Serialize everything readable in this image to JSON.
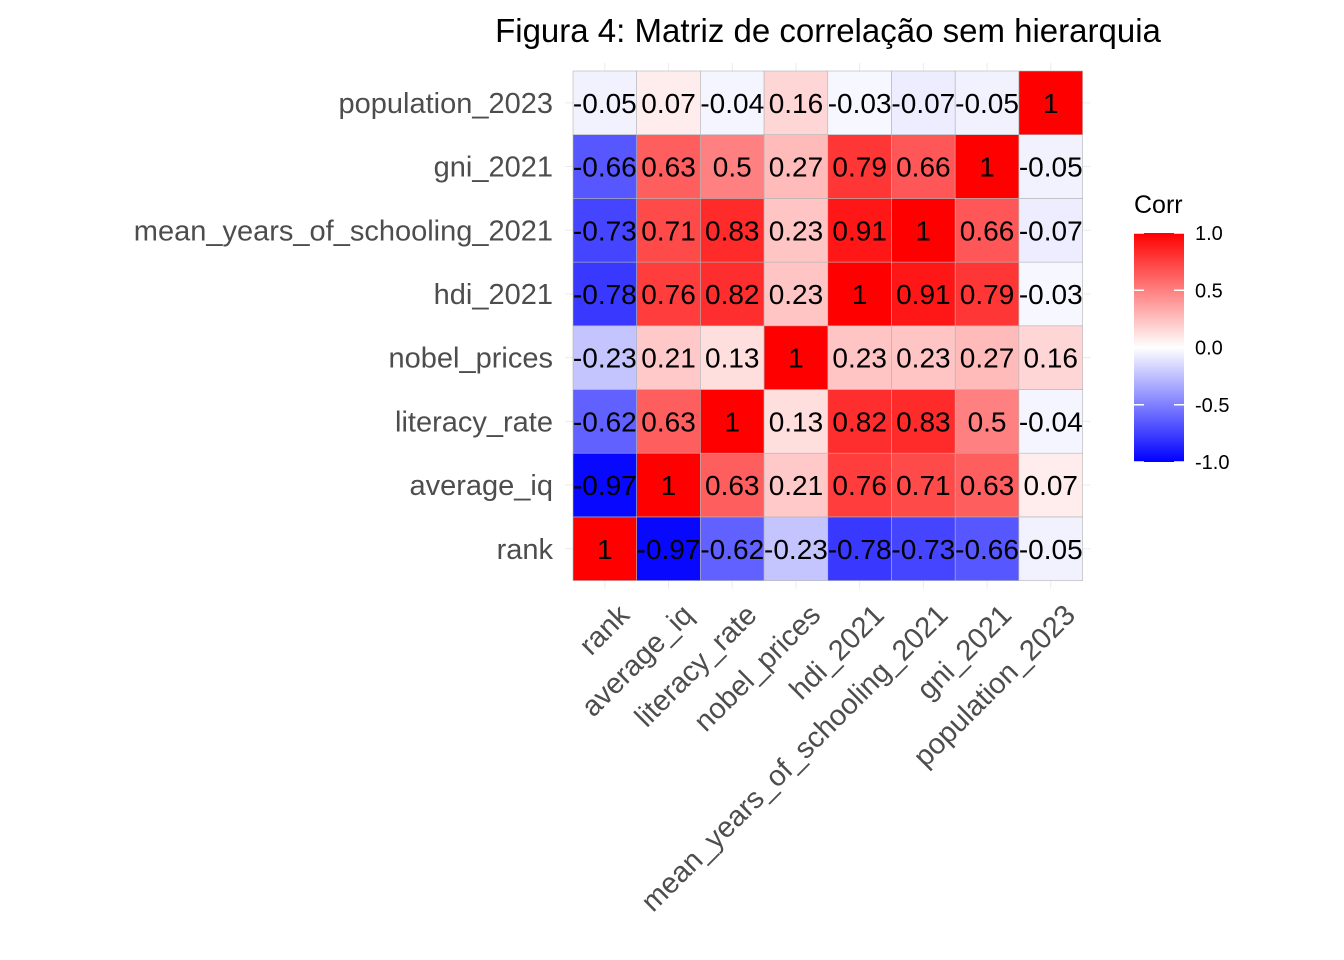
{
  "chart_data": {
    "type": "heatmap",
    "title": "Figura 4: Matriz de correlação sem hierarquia",
    "x_categories": [
      "rank",
      "average_iq",
      "literacy_rate",
      "nobel_prices",
      "hdi_2021",
      "mean_years_of_schooling_2021",
      "gni_2021",
      "population_2023"
    ],
    "y_categories": [
      "rank",
      "average_iq",
      "literacy_rate",
      "nobel_prices",
      "hdi_2021",
      "mean_years_of_schooling_2021",
      "gni_2021",
      "population_2023"
    ],
    "values": [
      [
        1,
        -0.97,
        -0.62,
        -0.23,
        -0.78,
        -0.73,
        -0.66,
        -0.05
      ],
      [
        -0.97,
        1,
        0.63,
        0.21,
        0.76,
        0.71,
        0.63,
        0.07
      ],
      [
        -0.62,
        0.63,
        1,
        0.13,
        0.82,
        0.83,
        0.5,
        -0.04
      ],
      [
        -0.23,
        0.21,
        0.13,
        1,
        0.23,
        0.23,
        0.27,
        0.16
      ],
      [
        -0.78,
        0.76,
        0.82,
        0.23,
        1,
        0.91,
        0.79,
        -0.03
      ],
      [
        -0.73,
        0.71,
        0.83,
        0.23,
        0.91,
        1,
        0.66,
        -0.07
      ],
      [
        -0.66,
        0.63,
        0.5,
        0.27,
        0.79,
        0.66,
        1,
        -0.05
      ],
      [
        -0.05,
        0.07,
        -0.04,
        0.16,
        -0.03,
        -0.07,
        -0.05,
        1
      ]
    ],
    "legend": {
      "title": "Corr",
      "ticks": [
        "1.0",
        "0.5",
        "0.0",
        "-0.5",
        "-1.0"
      ],
      "range": [
        -1,
        1
      ],
      "colors": {
        "low": "#0000ff",
        "mid": "#ffffff",
        "high": "#ff0000"
      }
    },
    "grid": true
  }
}
